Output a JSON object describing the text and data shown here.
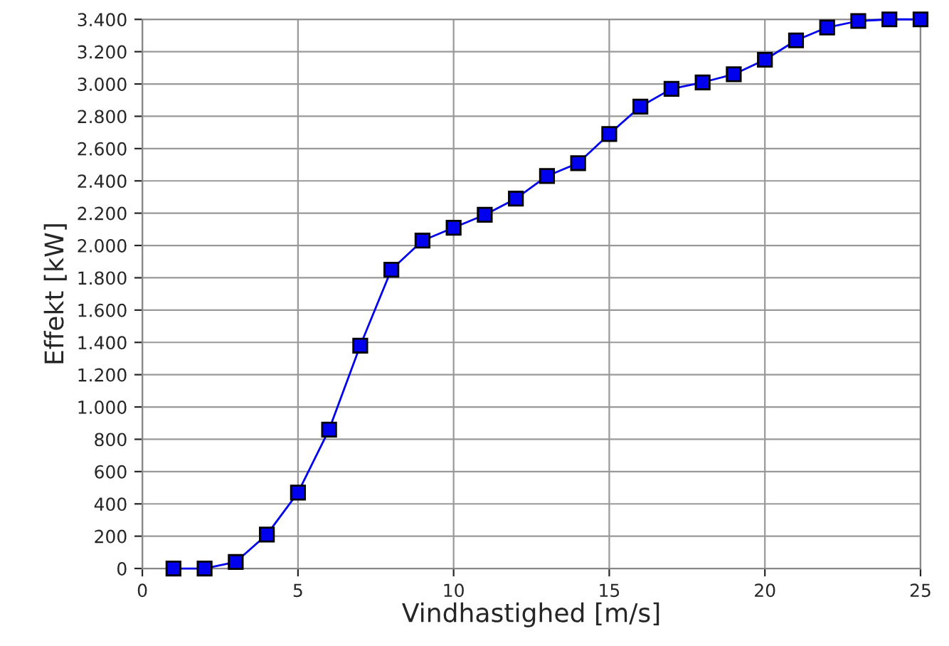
{
  "chart_data": {
    "type": "line",
    "xlabel": "Vindhastighed [m/s]",
    "ylabel": "Effekt [kW]",
    "x": [
      1,
      2,
      3,
      4,
      5,
      6,
      7,
      8,
      9,
      10,
      11,
      12,
      13,
      14,
      15,
      16,
      17,
      18,
      19,
      20,
      21,
      22,
      23,
      24,
      25
    ],
    "series": [
      {
        "color": "#0000ee",
        "values": [
          0,
          0,
          40,
          210,
          470,
          860,
          1380,
          1850,
          2030,
          2110,
          2190,
          2290,
          2430,
          2510,
          2690,
          2860,
          2970,
          3010,
          3060,
          3150,
          3270,
          3350,
          3390,
          3400,
          3400
        ]
      }
    ],
    "xlim": [
      0,
      25
    ],
    "xticks": [
      0,
      5,
      10,
      15,
      20,
      25
    ],
    "ylim": [
      0,
      3400
    ],
    "yticks": [
      0,
      200,
      400,
      600,
      800,
      {
        "value": 1000,
        "label": "1.000"
      },
      {
        "value": 1200,
        "label": "1.200"
      },
      {
        "value": 1400,
        "label": "1.400"
      },
      {
        "value": 1600,
        "label": "1.600"
      },
      {
        "value": 1800,
        "label": "1.800"
      },
      {
        "value": 2000,
        "label": "2.000"
      },
      {
        "value": 2200,
        "label": "2.200"
      },
      {
        "value": 2400,
        "label": "2.400"
      },
      {
        "value": 2600,
        "label": "2.600"
      },
      {
        "value": 2800,
        "label": "2.800"
      },
      {
        "value": 3000,
        "label": "3.000"
      },
      {
        "value": 3200,
        "label": "3.200"
      },
      {
        "value": 3400,
        "label": "3.400"
      }
    ],
    "grid": true,
    "marker": "square",
    "line_style": "solid"
  }
}
